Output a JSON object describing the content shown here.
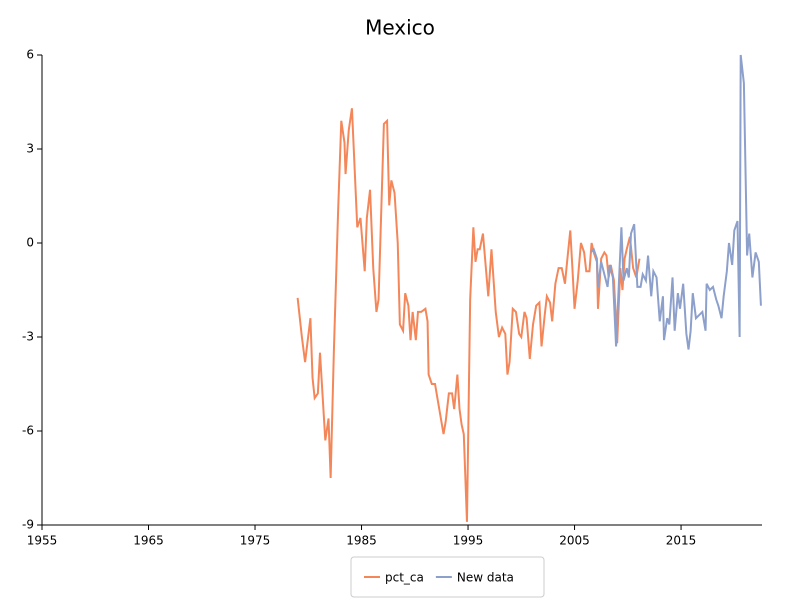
{
  "chart_data": {
    "type": "line",
    "title": "Mexico",
    "xlim": [
      1955,
      2022.6
    ],
    "xticks": [
      1955,
      1965,
      1975,
      1985,
      1995,
      2005,
      2015
    ],
    "ylim": [
      -9,
      6
    ],
    "yticks": [
      -9,
      -6,
      -3,
      0,
      3,
      6
    ],
    "legend": "bottom",
    "series": [
      {
        "name": "pct_ca",
        "color": "#f4875a",
        "x": [
          1979.0,
          1979.4,
          1979.7,
          1980.2,
          1980.4,
          1980.6,
          1980.9,
          1981.1,
          1981.6,
          1981.9,
          1982.1,
          1982.4,
          1982.8,
          1983.1,
          1983.4,
          1983.5,
          1983.8,
          1984.1,
          1984.6,
          1984.9,
          1985.3,
          1985.5,
          1985.8,
          1986.1,
          1986.4,
          1986.6,
          1987.1,
          1987.4,
          1987.6,
          1987.8,
          1988.1,
          1988.4,
          1988.6,
          1988.9,
          1989.1,
          1989.4,
          1989.6,
          1989.8,
          1990.1,
          1990.3,
          1990.6,
          1991.0,
          1991.2,
          1991.3,
          1991.6,
          1991.9,
          1992.2,
          1992.7,
          1992.9,
          1993.2,
          1993.5,
          1993.7,
          1994.0,
          1994.2,
          1994.4,
          1994.6,
          1994.9,
          1995.2,
          1995.5,
          1995.7,
          1995.9,
          1996.1,
          1996.4,
          1996.7,
          1996.9,
          1997.2,
          1997.4,
          1997.6,
          1997.9,
          1998.2,
          1998.5,
          1998.7,
          1998.9,
          1999.2,
          1999.5,
          1999.8,
          2000.0,
          2000.3,
          2000.5,
          2000.8,
          2001.1,
          2001.4,
          2001.7,
          2001.9,
          2002.2,
          2002.4,
          2002.7,
          2002.9,
          2003.2,
          2003.5,
          2003.8,
          2004.1,
          2004.3,
          2004.6,
          2004.8,
          2005.0,
          2005.3,
          2005.6,
          2005.9,
          2006.1,
          2006.4,
          2006.6,
          2006.8,
          2007.1,
          2007.2,
          2007.5,
          2007.8,
          2008.0,
          2008.2,
          2008.4,
          2008.7,
          2009.0,
          2009.3,
          2009.5,
          2009.7,
          2009.9,
          2010.2,
          2010.5,
          2010.8,
          2011.1
        ],
        "values": [
          -1.75,
          -3.0,
          -3.8,
          -2.4,
          -4.3,
          -4.95,
          -4.8,
          -3.5,
          -6.3,
          -5.6,
          -7.5,
          -3.5,
          1.0,
          3.9,
          3.2,
          2.2,
          3.6,
          4.3,
          0.5,
          0.8,
          -0.9,
          0.8,
          1.7,
          -0.8,
          -2.2,
          -1.8,
          3.8,
          3.9,
          1.2,
          2.0,
          1.6,
          0.0,
          -2.6,
          -2.8,
          -1.6,
          -2.0,
          -3.1,
          -2.2,
          -3.1,
          -2.2,
          -2.2,
          -2.1,
          -2.5,
          -4.2,
          -4.5,
          -4.5,
          -5.1,
          -6.1,
          -5.7,
          -4.8,
          -4.8,
          -5.3,
          -4.2,
          -5.3,
          -5.8,
          -6.1,
          -8.9,
          -1.8,
          0.5,
          -0.6,
          -0.2,
          -0.2,
          0.3,
          -0.9,
          -1.7,
          -0.2,
          -1.2,
          -2.2,
          -3.0,
          -2.7,
          -2.9,
          -4.2,
          -3.8,
          -2.1,
          -2.2,
          -2.9,
          -3.0,
          -2.2,
          -2.4,
          -3.7,
          -2.6,
          -2.0,
          -1.9,
          -3.3,
          -2.3,
          -1.7,
          -1.9,
          -2.5,
          -1.3,
          -0.8,
          -0.8,
          -1.3,
          -0.6,
          0.4,
          -0.8,
          -2.1,
          -1.2,
          0.0,
          -0.3,
          -0.9,
          -0.9,
          0.0,
          -0.3,
          -0.6,
          -2.1,
          -0.5,
          -0.3,
          -0.4,
          -1.1,
          -0.7,
          -1.2,
          -3.2,
          -0.8,
          -1.5,
          -0.5,
          -0.2,
          0.2,
          -0.8,
          -1.1,
          -0.5
        ]
      },
      {
        "name": "New data",
        "color": "#8da0cb",
        "x": [
          2006.5,
          2006.8,
          2007.1,
          2007.2,
          2007.5,
          2007.8,
          2008.1,
          2008.3,
          2008.6,
          2008.9,
          2009.2,
          2009.4,
          2009.6,
          2009.9,
          2010.1,
          2010.3,
          2010.6,
          2010.9,
          2011.2,
          2011.4,
          2011.7,
          2011.9,
          2012.2,
          2012.4,
          2012.7,
          2013.0,
          2013.3,
          2013.4,
          2013.7,
          2013.9,
          2014.2,
          2014.4,
          2014.7,
          2014.9,
          2015.2,
          2015.5,
          2015.7,
          2015.9,
          2016.1,
          2016.4,
          2016.7,
          2017.0,
          2017.3,
          2017.4,
          2017.7,
          2018.0,
          2018.3,
          2018.5,
          2018.8,
          2019.0,
          2019.3,
          2019.5,
          2019.8,
          2020.0,
          2020.3,
          2020.5,
          2020.6,
          2020.9,
          2021.2,
          2021.4,
          2021.7,
          2022.0,
          2022.3,
          2022.5
        ],
        "values": [
          -0.3,
          -0.2,
          -0.5,
          -1.4,
          -0.6,
          -1.0,
          -1.4,
          -0.7,
          -1.1,
          -3.3,
          -1.0,
          0.5,
          -1.2,
          -0.8,
          -1.1,
          0.3,
          0.6,
          -1.4,
          -1.4,
          -1.0,
          -1.2,
          -0.4,
          -1.7,
          -0.9,
          -1.1,
          -2.5,
          -1.7,
          -3.1,
          -2.4,
          -2.6,
          -1.1,
          -2.8,
          -1.6,
          -2.1,
          -1.3,
          -2.9,
          -3.4,
          -2.8,
          -1.6,
          -2.4,
          -2.3,
          -2.2,
          -2.8,
          -1.3,
          -1.5,
          -1.4,
          -1.8,
          -2.0,
          -2.4,
          -1.7,
          -0.9,
          0.0,
          -0.7,
          0.4,
          0.7,
          -3.0,
          6.0,
          5.1,
          -0.4,
          0.3,
          -1.1,
          -0.3,
          -0.6,
          -2.0
        ]
      }
    ]
  }
}
